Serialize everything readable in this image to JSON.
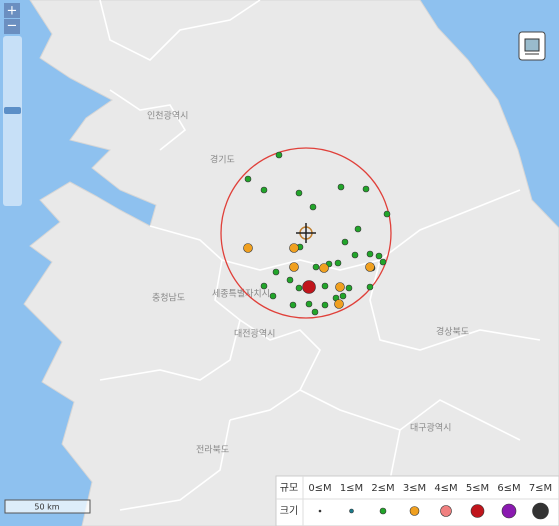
{
  "zoom": {
    "in": "+",
    "out": "−"
  },
  "regions": [
    "인천광역시",
    "경기도",
    "충청남도",
    "세종특별자치시",
    "대전광역시",
    "경상북도",
    "전라북도",
    "대구광역시"
  ],
  "legend": {
    "magnitude_label": "규모",
    "size_label": "크기",
    "classes": [
      "0≤M",
      "1≤M",
      "2≤M",
      "3≤M",
      "4≤M",
      "5≤M",
      "6≤M",
      "7≤M"
    ]
  },
  "scale_bar": "50 km"
}
